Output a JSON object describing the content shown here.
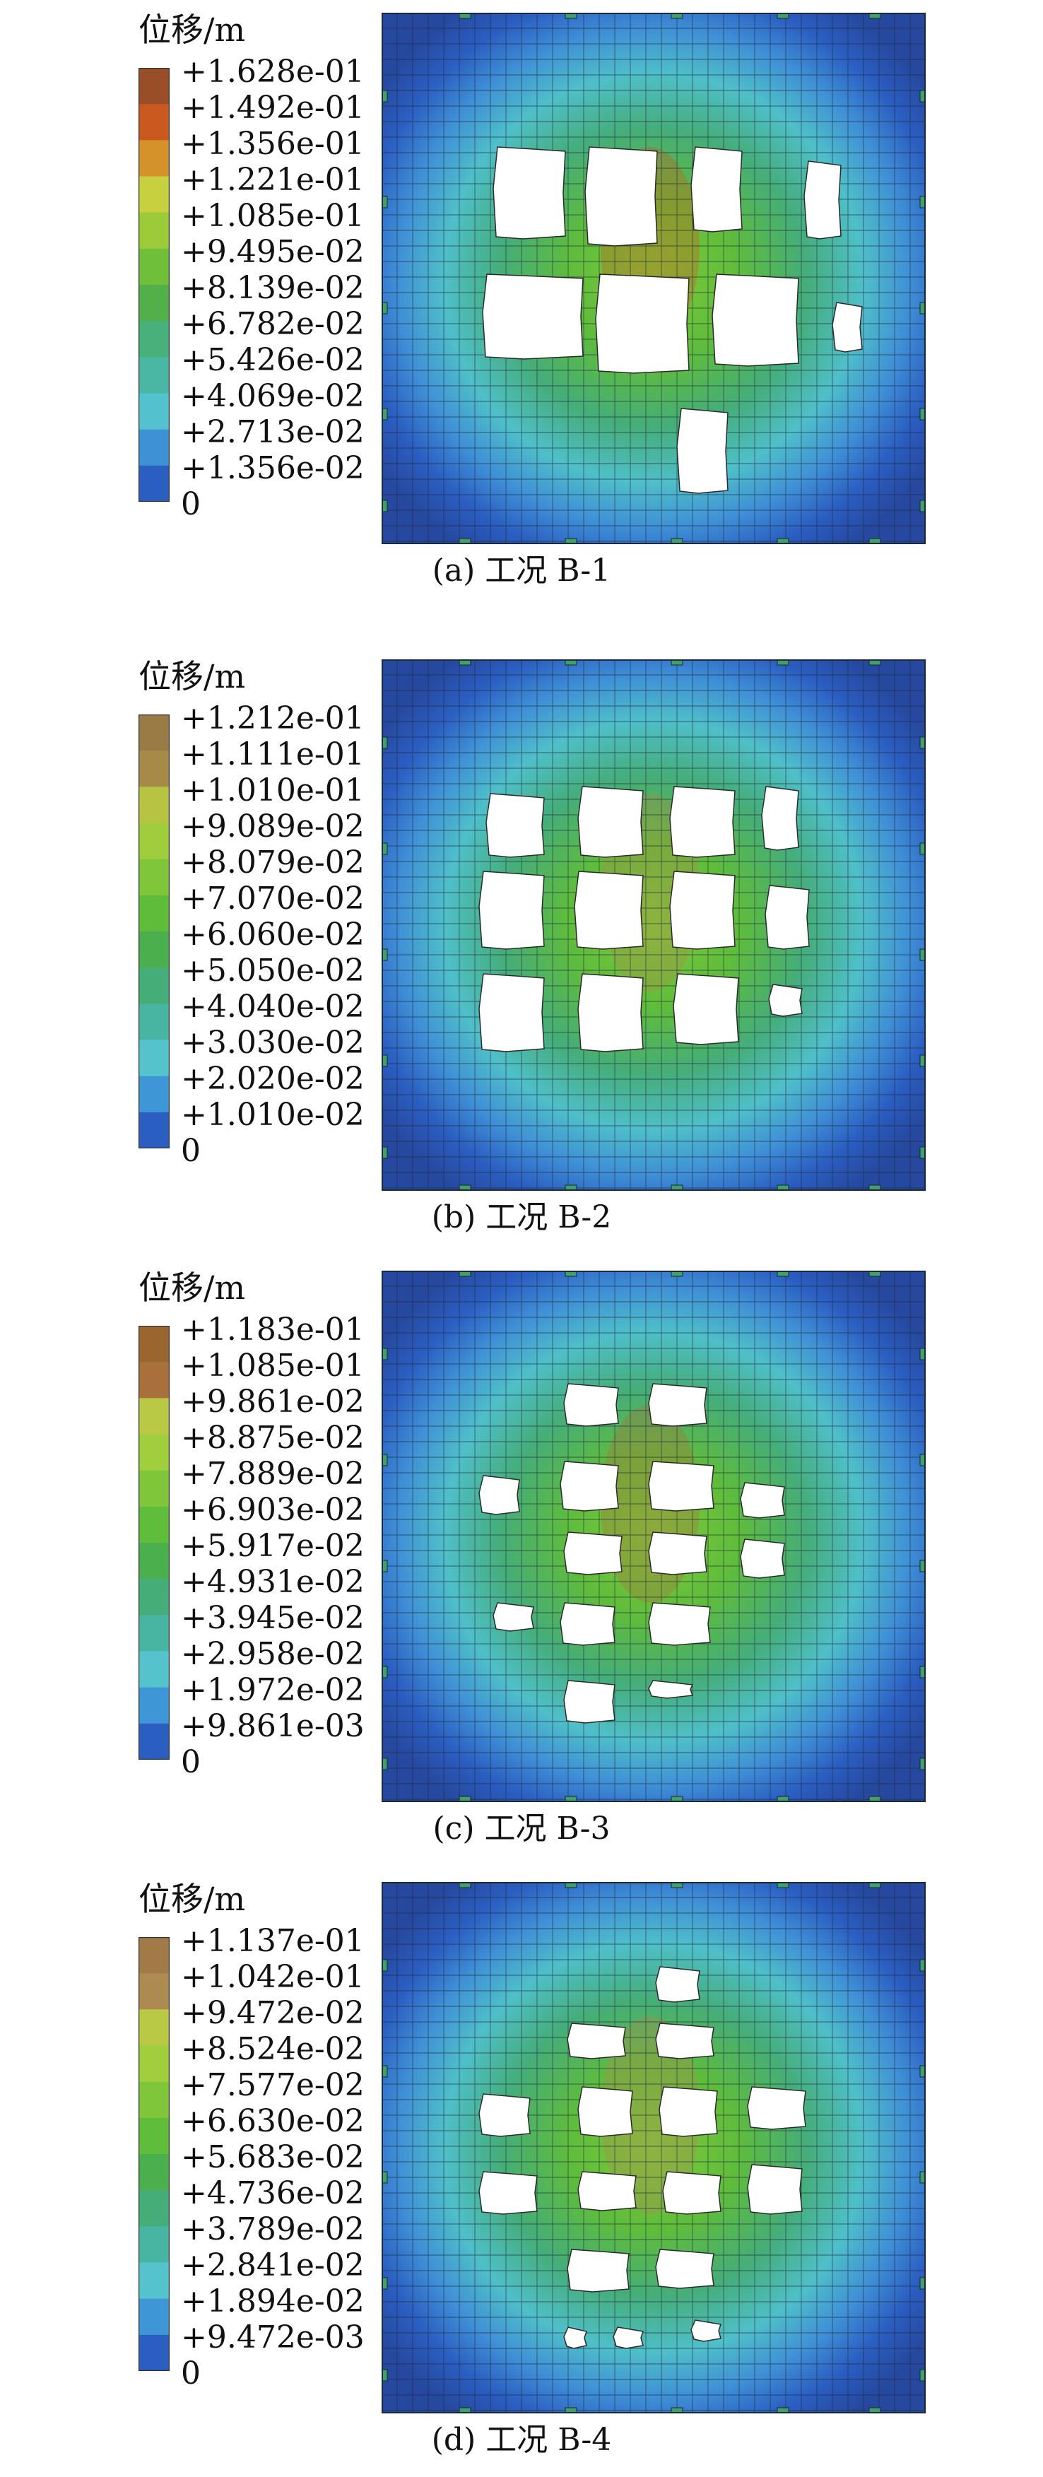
{
  "panels": [
    {
      "legend_title": "位移/m",
      "legend_labels": [
        "+1.628e-01",
        "+1.492e-01",
        "+1.356e-01",
        "+1.221e-01",
        "+1.085e-01",
        "+9.495e-02",
        "+8.139e-02",
        "+6.782e-02",
        "+5.426e-02",
        "+4.069e-02",
        "+2.713e-02",
        "+1.356e-02",
        "0"
      ],
      "legend_colors": [
        "#9a4e28",
        "#c9591e",
        "#d6922a",
        "#c7d13f",
        "#9ccb3a",
        "#6fbf3a",
        "#52b04a",
        "#48b07a",
        "#4ab6a4",
        "#54c1cf",
        "#3c92d4",
        "#2b5ec1"
      ],
      "caption": "(a) 工况 B-1"
    },
    {
      "legend_title": "位移/m",
      "legend_labels": [
        "+1.212e-01",
        "+1.111e-01",
        "+1.010e-01",
        "+9.089e-02",
        "+8.079e-02",
        "+7.070e-02",
        "+6.060e-02",
        "+5.050e-02",
        "+4.040e-02",
        "+3.030e-02",
        "+2.020e-02",
        "+1.010e-02",
        "0"
      ],
      "legend_colors": [
        "#9a7a45",
        "#a88a48",
        "#b7c443",
        "#9fcd3c",
        "#7fc63b",
        "#5fbc3b",
        "#4aaf4c",
        "#45ad78",
        "#48b5a2",
        "#55c3cc",
        "#3f96d6",
        "#2b5ec1"
      ],
      "caption": "(b) 工况 B-2"
    },
    {
      "legend_title": "位移/m",
      "legend_labels": [
        "+1.183e-01",
        "+1.085e-01",
        "+9.861e-02",
        "+8.875e-02",
        "+7.889e-02",
        "+6.903e-02",
        "+5.917e-02",
        "+4.931e-02",
        "+3.945e-02",
        "+2.958e-02",
        "+1.972e-02",
        "+9.861e-03",
        "0"
      ],
      "legend_colors": [
        "#9a6630",
        "#a9703b",
        "#b9c845",
        "#a0ce3c",
        "#80c63b",
        "#60bc3b",
        "#4aaf4c",
        "#45ad78",
        "#48b5a2",
        "#55c3cc",
        "#3f96d6",
        "#2b5ec1"
      ],
      "caption": "(c) 工况 B-3"
    },
    {
      "legend_title": "位移/m",
      "legend_labels": [
        "+1.137e-01",
        "+1.042e-01",
        "+9.472e-02",
        "+8.524e-02",
        "+7.577e-02",
        "+6.630e-02",
        "+5.683e-02",
        "+4.736e-02",
        "+3.789e-02",
        "+2.841e-02",
        "+1.894e-02",
        "+9.472e-03",
        "0"
      ],
      "legend_colors": [
        "#a17a48",
        "#ad8a50",
        "#b9c845",
        "#a0ce3c",
        "#80c63b",
        "#60bc3b",
        "#4aaf4c",
        "#45ad78",
        "#48b5a2",
        "#55c3cc",
        "#3f96d6",
        "#2b5ec1"
      ],
      "caption": "(d) 工况 B-4"
    }
  ]
}
